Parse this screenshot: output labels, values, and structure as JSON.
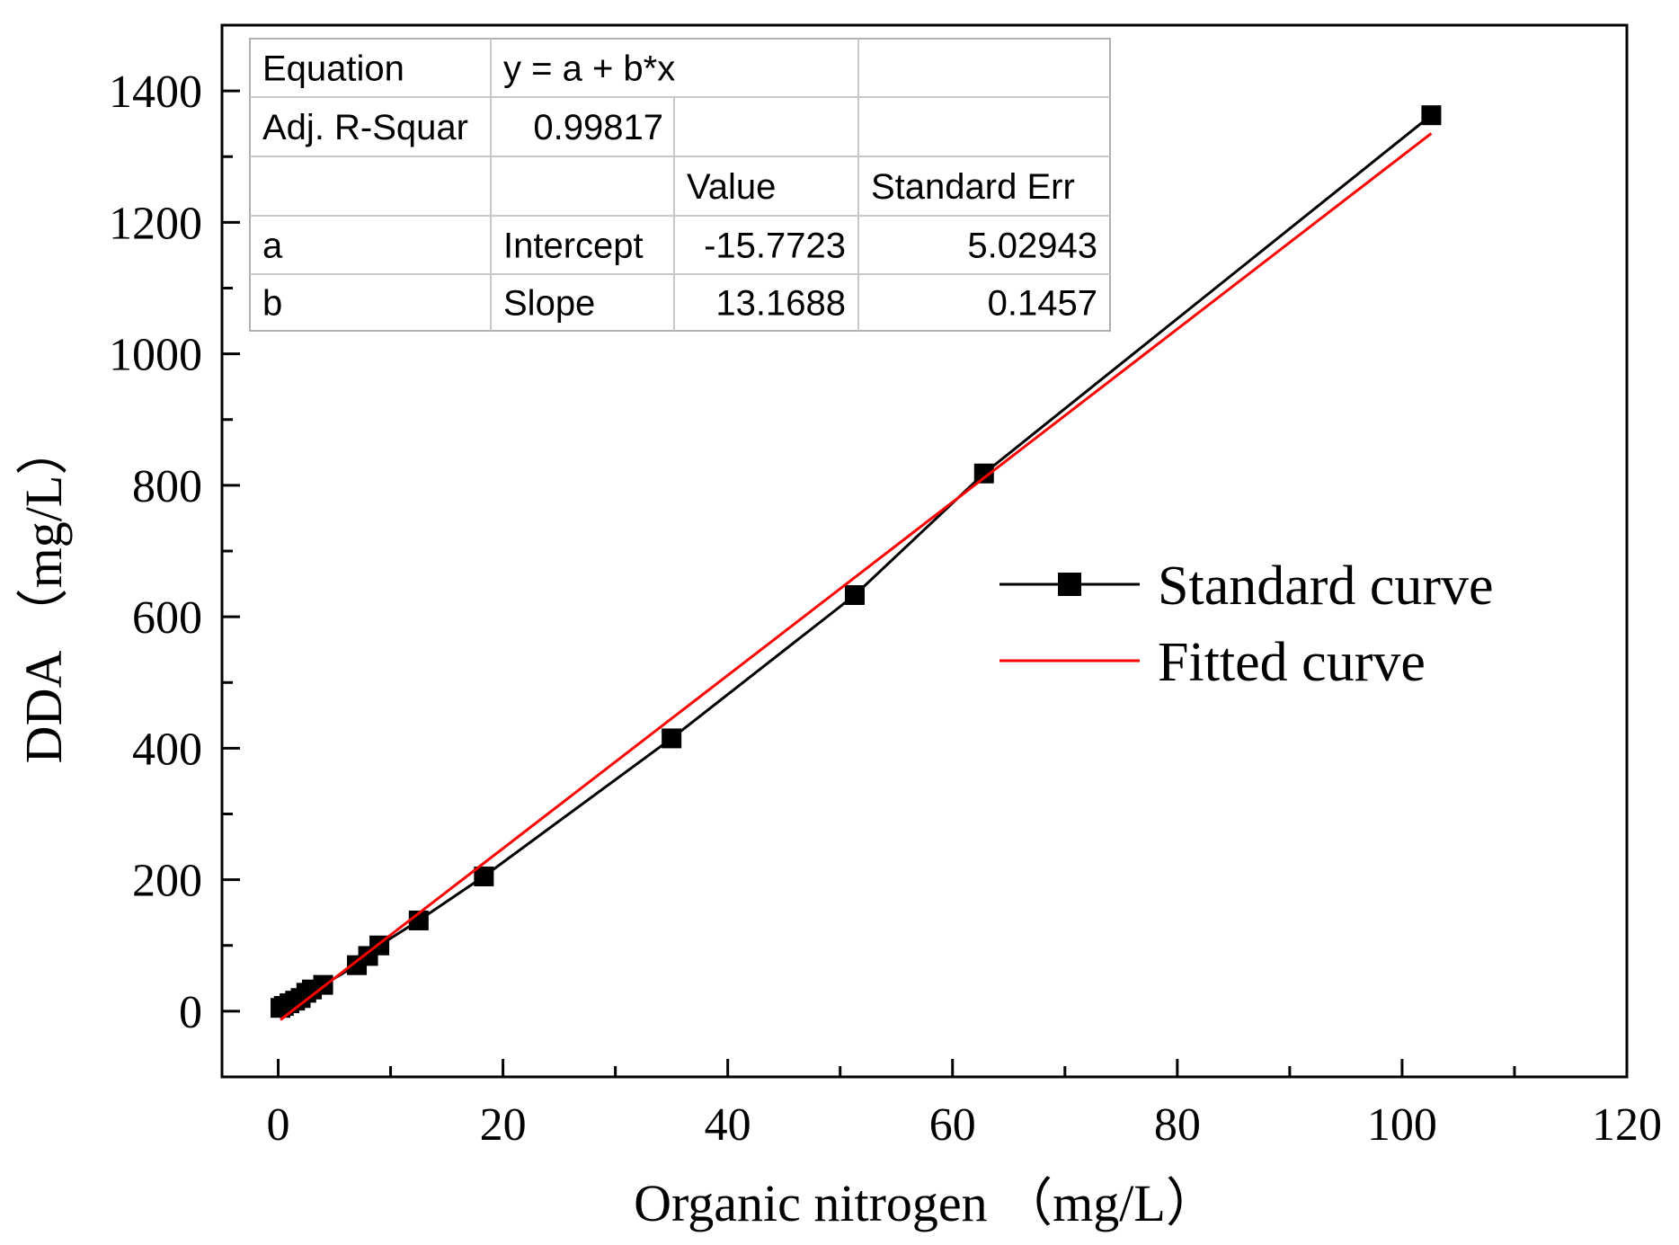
{
  "chart_data": {
    "type": "line",
    "xlabel": "Organic nitrogen （mg/L）",
    "ylabel": "DDA （mg/L）",
    "xlim": [
      -5,
      120
    ],
    "ylim": [
      -100,
      1500
    ],
    "x_ticks": [
      0,
      20,
      40,
      60,
      80,
      100,
      120
    ],
    "y_ticks": [
      0,
      200,
      400,
      600,
      800,
      1000,
      1200,
      1400
    ],
    "x_minor_step": 10,
    "y_minor_step": 100,
    "series": [
      {
        "name": "Standard curve",
        "style": "line+square-markers",
        "color": "#000000",
        "x": [
          0.2,
          0.5,
          1.0,
          1.5,
          2.0,
          2.5,
          3.0,
          4.0,
          7.0,
          8.0,
          9.0,
          12.5,
          18.3,
          35.0,
          51.3,
          62.8,
          102.6
        ],
        "y": [
          5,
          8,
          12,
          16,
          20,
          28,
          33,
          40,
          70,
          84,
          100,
          138,
          205,
          415,
          633,
          818,
          1363
        ]
      },
      {
        "name": "Fitted curve",
        "style": "line",
        "color": "#ff0000",
        "x": [
          0.2,
          102.6
        ],
        "y": [
          -13.1,
          1335.3
        ]
      }
    ],
    "fit_table": {
      "rows": [
        [
          "Equation",
          "y = a + b*x",
          "",
          ""
        ],
        [
          "Adj. R-Squar",
          "0.99817",
          "",
          ""
        ],
        [
          "",
          "",
          "Value",
          "Standard Err"
        ],
        [
          "a",
          "Intercept",
          "-15.7723",
          "5.02943"
        ],
        [
          "b",
          "Slope",
          "13.1688",
          "0.1457"
        ]
      ]
    },
    "legend": [
      "Standard curve",
      "Fitted curve"
    ],
    "legend_position": "center-right"
  }
}
